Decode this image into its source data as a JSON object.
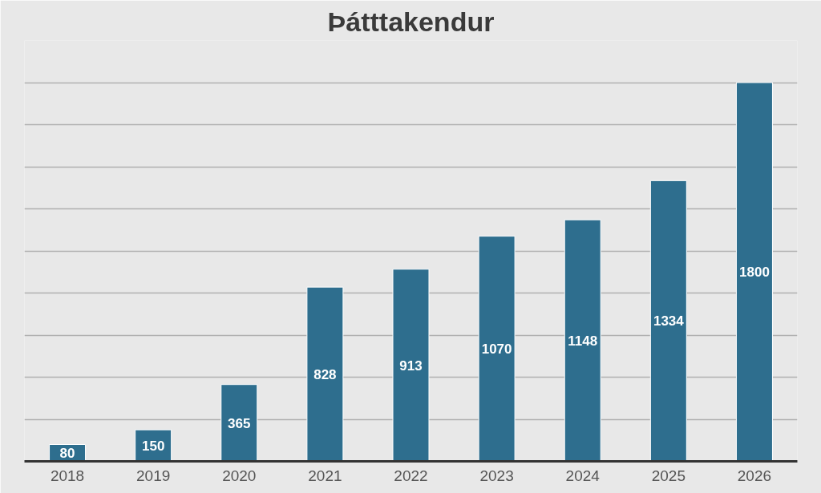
{
  "chart_data": {
    "type": "bar",
    "title": "Þátttakendur",
    "categories": [
      "2018",
      "2019",
      "2020",
      "2021",
      "2022",
      "2023",
      "2024",
      "2025",
      "2026"
    ],
    "values": [
      80,
      150,
      365,
      828,
      913,
      1070,
      1148,
      1334,
      1800
    ],
    "color": "#2e6e8e",
    "data_labels": true,
    "ylim": [
      0,
      2000
    ],
    "yticks": [
      {
        "value": 0,
        "label": null
      },
      {
        "value": 200,
        "label": null
      },
      {
        "value": 400,
        "label": null
      },
      {
        "value": 600,
        "label": null
      },
      {
        "value": 800,
        "label": null
      },
      {
        "value": 1000,
        "label": null
      },
      {
        "value": 1200,
        "label": null
      },
      {
        "value": 1400,
        "label": null
      },
      {
        "value": 1600,
        "label": null
      },
      {
        "value": 1800,
        "label": null
      },
      {
        "value": 2000,
        "label": null
      }
    ],
    "tick_labels": "x",
    "grid": "y"
  }
}
